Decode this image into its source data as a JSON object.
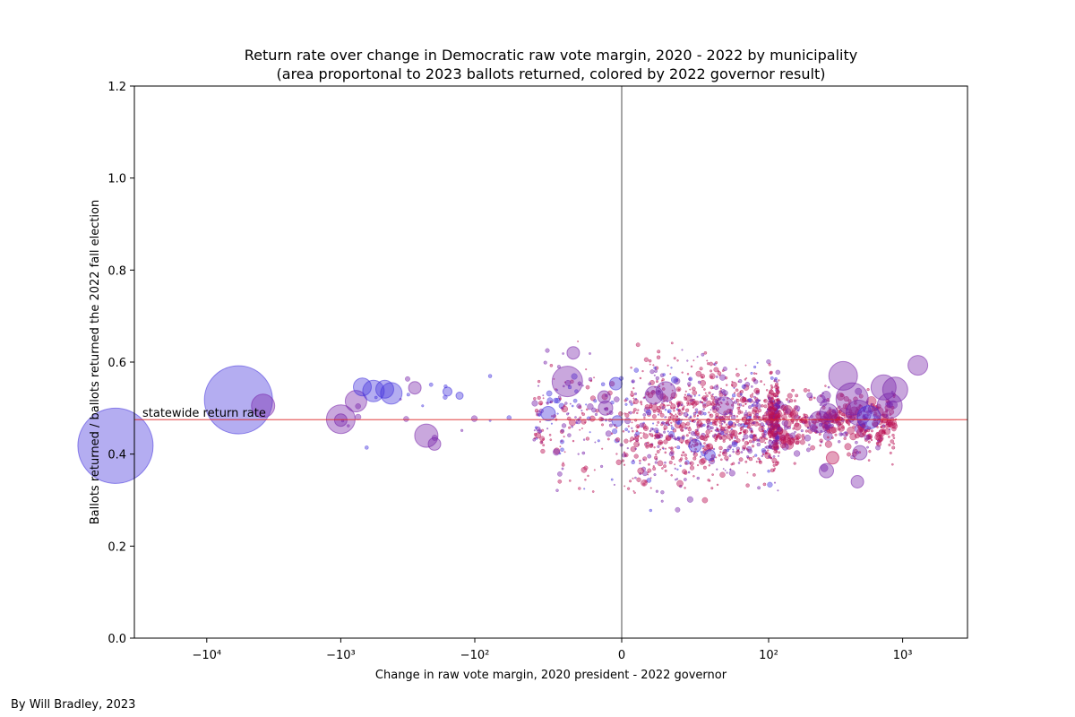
{
  "chart_data": {
    "type": "scatter",
    "title": "Return rate over change in Democratic raw vote margin, 2020 - 2022 by municipality",
    "subtitle": "(area proportonal to 2023 ballots returned, colored by 2022 governor result)",
    "xlabel": "Change in raw vote margin, 2020 president - 2022 governor",
    "ylabel": "Ballots returned / ballots returned the 2022 fall election",
    "x_scale": "symlog",
    "xlim": [
      -50000,
      3000
    ],
    "ylim": [
      0.0,
      1.2
    ],
    "x_ticks": [
      {
        "value": -10000,
        "label": "−10⁴"
      },
      {
        "value": -1000,
        "label": "−10³"
      },
      {
        "value": -100,
        "label": "−10²"
      },
      {
        "value": 0,
        "label": "0"
      },
      {
        "value": 100,
        "label": "10²"
      },
      {
        "value": 1000,
        "label": "10³"
      }
    ],
    "y_ticks": [
      "0.0",
      "0.2",
      "0.4",
      "0.6",
      "0.8",
      "1.0",
      "1.2"
    ],
    "y_tick_values": [
      0.0,
      0.2,
      0.4,
      0.6,
      0.8,
      1.0,
      1.2
    ],
    "statewide_return_rate": 0.475,
    "statewide_label": "statewide return rate",
    "colors": {
      "democratic": "#4433dd",
      "republican": "#bb1155",
      "mixed": "#7722aa",
      "reference_line": "#dd2222"
    },
    "points": [
      {
        "x": -48000,
        "y": 0.418,
        "size": 42,
        "color": "democratic"
      },
      {
        "x": -5800,
        "y": 0.518,
        "size": 38,
        "color": "democratic"
      },
      {
        "x": -3800,
        "y": 0.505,
        "size": 13,
        "color": "mixed"
      },
      {
        "x": -1000,
        "y": 0.476,
        "size": 16,
        "color": "mixed"
      },
      {
        "x": -1000,
        "y": 0.474,
        "size": 7,
        "color": "mixed"
      },
      {
        "x": -770,
        "y": 0.515,
        "size": 12,
        "color": "mixed"
      },
      {
        "x": -690,
        "y": 0.546,
        "size": 10,
        "color": "democratic"
      },
      {
        "x": -570,
        "y": 0.537,
        "size": 12,
        "color": "democratic"
      },
      {
        "x": -470,
        "y": 0.541,
        "size": 10,
        "color": "democratic"
      },
      {
        "x": -420,
        "y": 0.532,
        "size": 12,
        "color": "democratic"
      },
      {
        "x": -280,
        "y": 0.544,
        "size": 7,
        "color": "mixed"
      },
      {
        "x": -230,
        "y": 0.44,
        "size": 13,
        "color": "mixed"
      },
      {
        "x": -200,
        "y": 0.422,
        "size": 7,
        "color": "mixed"
      },
      {
        "x": -160,
        "y": 0.536,
        "size": 5,
        "color": "democratic"
      },
      {
        "x": -130,
        "y": 0.527,
        "size": 4,
        "color": "democratic"
      },
      {
        "x": -50,
        "y": 0.488,
        "size": 8,
        "color": "democratic"
      },
      {
        "x": -37,
        "y": 0.558,
        "size": 17,
        "color": "mixed"
      },
      {
        "x": -33,
        "y": 0.62,
        "size": 7,
        "color": "mixed"
      },
      {
        "x": -12,
        "y": 0.524,
        "size": 7,
        "color": "mixed"
      },
      {
        "x": -11,
        "y": 0.5,
        "size": 8,
        "color": "mixed"
      },
      {
        "x": -4,
        "y": 0.553,
        "size": 7,
        "color": "democratic"
      },
      {
        "x": -3,
        "y": 0.472,
        "size": 6,
        "color": "democratic"
      },
      {
        "x": 22,
        "y": 0.528,
        "size": 10,
        "color": "mixed"
      },
      {
        "x": 30,
        "y": 0.536,
        "size": 11,
        "color": "mixed"
      },
      {
        "x": 70,
        "y": 0.505,
        "size": 10,
        "color": "mixed"
      },
      {
        "x": 50,
        "y": 0.418,
        "size": 7,
        "color": "democratic"
      },
      {
        "x": 60,
        "y": 0.398,
        "size": 6,
        "color": "democratic"
      },
      {
        "x": 360,
        "y": 0.57,
        "size": 16,
        "color": "mixed"
      },
      {
        "x": 420,
        "y": 0.52,
        "size": 18,
        "color": "mixed"
      },
      {
        "x": 470,
        "y": 0.49,
        "size": 14,
        "color": "mixed"
      },
      {
        "x": 560,
        "y": 0.48,
        "size": 13,
        "color": "democratic"
      },
      {
        "x": 720,
        "y": 0.545,
        "size": 14,
        "color": "mixed"
      },
      {
        "x": 800,
        "y": 0.505,
        "size": 14,
        "color": "mixed"
      },
      {
        "x": 880,
        "y": 0.54,
        "size": 14,
        "color": "mixed"
      },
      {
        "x": 1300,
        "y": 0.593,
        "size": 11,
        "color": "mixed"
      },
      {
        "x": 460,
        "y": 0.34,
        "size": 7,
        "color": "mixed"
      },
      {
        "x": 270,
        "y": 0.364,
        "size": 8,
        "color": "mixed"
      },
      {
        "x": 300,
        "y": 0.392,
        "size": 7,
        "color": "republican"
      },
      {
        "x": 480,
        "y": 0.403,
        "size": 8,
        "color": "mixed"
      },
      {
        "x": 240,
        "y": 0.47,
        "size": 12,
        "color": "mixed"
      },
      {
        "x": 280,
        "y": 0.49,
        "size": 10,
        "color": "mixed"
      }
    ]
  }
}
